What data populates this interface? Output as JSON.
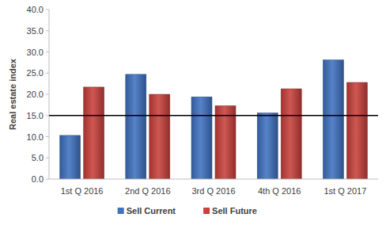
{
  "chart_data": {
    "type": "bar",
    "y_label": "Real estate index",
    "categories": [
      "1st Q 2016",
      "2nd Q 2016",
      "3rd Q 2016",
      "4th Q 2016",
      "1st Q 2017"
    ],
    "series": [
      {
        "name": "Sell Current",
        "color": "#3f72c0",
        "values": [
          10.3,
          24.7,
          19.4,
          15.6,
          28.1
        ]
      },
      {
        "name": "Sell Future",
        "color": "#c9403c",
        "values": [
          21.7,
          20.0,
          17.3,
          21.3,
          22.8
        ]
      }
    ],
    "threshold": 15,
    "ylim": [
      0,
      40
    ],
    "yticks": [
      {
        "value": 0,
        "label": "0.0"
      },
      {
        "value": 5,
        "label": "5.0"
      },
      {
        "value": 10,
        "label": "10.0"
      },
      {
        "value": 15,
        "label": "15.0"
      },
      {
        "value": 20,
        "label": "20.0"
      },
      {
        "value": 25,
        "label": "25.0"
      },
      {
        "value": 30,
        "label": "30.0"
      },
      {
        "value": 35,
        "label": "35.0"
      },
      {
        "value": 40,
        "label": "40.0"
      }
    ],
    "grid": false,
    "legend": "bottom"
  }
}
